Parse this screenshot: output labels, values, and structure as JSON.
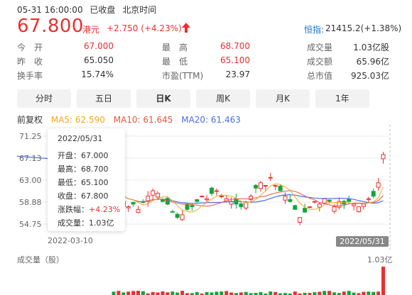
{
  "header": {
    "datetime": "05-31 16:00:00",
    "status": "已收盘",
    "timezone": "北京时间"
  },
  "quote": {
    "price": "67.800",
    "currency": "港元",
    "change": "+2.750 (+4.23%)",
    "index_name": "恒指:",
    "index_value": "21415.2(+1.38%)"
  },
  "stats": [
    {
      "label": "今　开",
      "value": "67.000",
      "color": "red"
    },
    {
      "label": "最　高",
      "value": "68.700",
      "color": "red"
    },
    {
      "label": "成交量",
      "value": "1.03亿股",
      "color": "plain"
    },
    {
      "label": "昨　收",
      "value": "65.050",
      "color": "plain"
    },
    {
      "label": "最　低",
      "value": "65.100",
      "color": "red"
    },
    {
      "label": "成交额",
      "value": "65.96亿",
      "color": "plain"
    },
    {
      "label": "换手率",
      "value": "15.74%",
      "color": "plain"
    },
    {
      "label": "市盈(TTM)",
      "value": "23.97",
      "color": "plain"
    },
    {
      "label": "总市值",
      "value": "925.03亿",
      "color": "plain"
    }
  ],
  "tabs": [
    {
      "label": "分时",
      "active": false
    },
    {
      "label": "五日",
      "active": false
    },
    {
      "label": "日K",
      "active": true
    },
    {
      "label": "周K",
      "active": false
    },
    {
      "label": "月K",
      "active": false
    },
    {
      "label": "1年",
      "active": false
    }
  ],
  "ma": {
    "adjust": "前复权",
    "ma5": "MA5: 62.590",
    "ma10": "MA10: 61.645",
    "ma20": "MA20: 61.463",
    "colors": {
      "ma5": "#f5a623",
      "ma10": "#e8553d",
      "ma20": "#4a6fe3"
    }
  },
  "chart": {
    "y_ticks": [
      "71.25",
      "67.13",
      "63.00",
      "58.88",
      "54.75"
    ],
    "date_start": "2022-03-10",
    "date_end": "2022/05/31",
    "vol_label": "成交量（股）",
    "vol_max": "1.03亿"
  },
  "tooltip": {
    "date": "2022/05/31",
    "open": "开盘：67.000",
    "high": "最高：68.700",
    "low": "最低：65.100",
    "close": "收盘：67.800",
    "change_label": "涨跌幅：",
    "change_value": "+4.23%",
    "volume": "成交量：1.03亿"
  },
  "colors": {
    "up": "#e93030",
    "down": "#12a53a",
    "accent": "#1a6fd1"
  }
}
